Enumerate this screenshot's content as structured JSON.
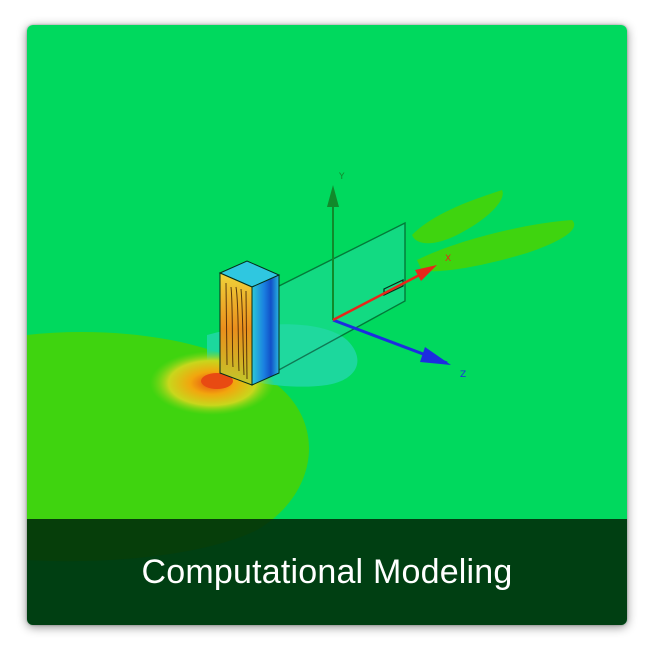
{
  "card": {
    "caption": "Computational Modeling"
  },
  "colors": {
    "background_field": "#00d95e",
    "plume_field": "#3fd40f",
    "axis_x_blue": "#1c2de0",
    "axis_y_red": "#e8261a",
    "axis_z_green": "#118a2b",
    "caption_bg": "#002d0a",
    "caption_text": "#ffffff"
  },
  "icons": {
    "axis_glyphs": [
      "y-axis-arrow-icon",
      "x-axis-arrow-icon",
      "z-axis-arrow-icon"
    ]
  }
}
